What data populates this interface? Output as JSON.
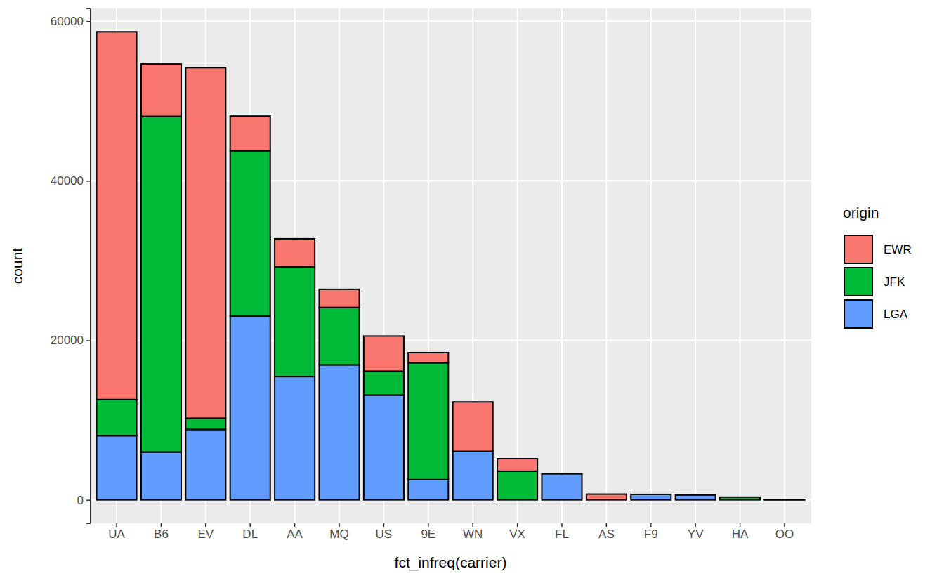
{
  "chart_data": {
    "type": "bar",
    "x_label": "fct_infreq(carrier)",
    "y_label": "count",
    "legend_title": "origin",
    "categories": [
      "UA",
      "B6",
      "EV",
      "DL",
      "AA",
      "MQ",
      "US",
      "9E",
      "WN",
      "VX",
      "FL",
      "AS",
      "F9",
      "YV",
      "HA",
      "OO"
    ],
    "series": [
      {
        "name": "EWR",
        "color": "#F8766D",
        "values": [
          46087,
          6557,
          43939,
          4342,
          3487,
          2276,
          4405,
          1268,
          6188,
          1566,
          0,
          714,
          0,
          0,
          0,
          6
        ]
      },
      {
        "name": "JFK",
        "color": "#00BA38",
        "values": [
          4534,
          42076,
          1408,
          20701,
          13783,
          7193,
          2995,
          14651,
          0,
          3596,
          0,
          0,
          0,
          0,
          342,
          0
        ]
      },
      {
        "name": "LGA",
        "color": "#619CFF",
        "values": [
          8044,
          6002,
          8826,
          23067,
          15459,
          16928,
          13136,
          2541,
          6087,
          0,
          3260,
          0,
          685,
          601,
          0,
          26
        ]
      }
    ],
    "ylim": [
      -2933,
      61598
    ],
    "yticks": [
      0,
      20000,
      40000,
      60000
    ],
    "stacked": true,
    "grid": true,
    "legend": "right"
  }
}
